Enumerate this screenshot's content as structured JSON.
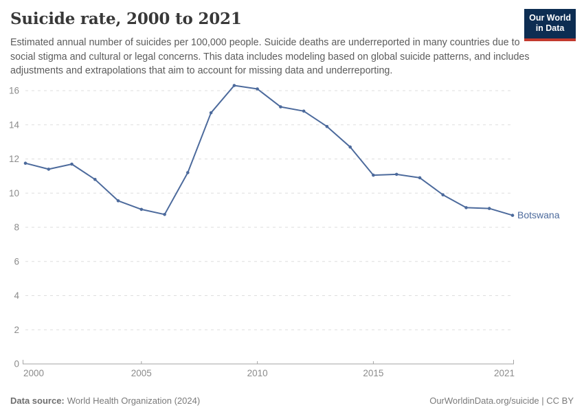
{
  "header": {
    "title": "Suicide rate, 2000 to 2021",
    "subtitle": "Estimated annual number of suicides per 100,000 people. Suicide deaths are underreported in many countries due to social stigma and cultural or legal concerns. This data includes modeling based on global suicide patterns, and includes adjustments and extrapolations that aim to account for missing data and underreporting.",
    "logo": {
      "line1": "Our World",
      "line2": "in Data",
      "bg_color": "#0d2d52",
      "bar_color": "#c2392e"
    }
  },
  "chart_data": {
    "type": "line",
    "title": "Suicide rate, 2000 to 2021",
    "xlabel": "",
    "ylabel": "",
    "x": [
      2000,
      2001,
      2002,
      2003,
      2004,
      2005,
      2006,
      2007,
      2008,
      2009,
      2010,
      2011,
      2012,
      2013,
      2014,
      2015,
      2016,
      2017,
      2018,
      2019,
      2020,
      2021
    ],
    "series": [
      {
        "name": "Botswana",
        "color": "#4c6a9c",
        "values": [
          11.75,
          11.4,
          11.7,
          10.8,
          9.55,
          9.05,
          8.75,
          11.2,
          14.7,
          16.3,
          16.1,
          15.05,
          14.8,
          13.9,
          12.7,
          11.05,
          11.1,
          10.9,
          9.9,
          9.15,
          9.1,
          8.7
        ]
      }
    ],
    "xlim": [
      2000,
      2021
    ],
    "ylim": [
      0,
      16.6
    ],
    "xticks": [
      2000,
      2005,
      2010,
      2015,
      2021
    ],
    "yticks": [
      0,
      2,
      4,
      6,
      8,
      10,
      12,
      14,
      16
    ],
    "grid": "horizontal-dashed",
    "legend_position": "end-of-line-label",
    "grid_color": "#dedede",
    "axis_color": "#a3a3a3",
    "tick_label_color": "#8b8b8b"
  },
  "footer": {
    "source_label": "Data source:",
    "source_text": "World Health Organization (2024)",
    "credit": "OurWorldinData.org/suicide | CC BY"
  }
}
